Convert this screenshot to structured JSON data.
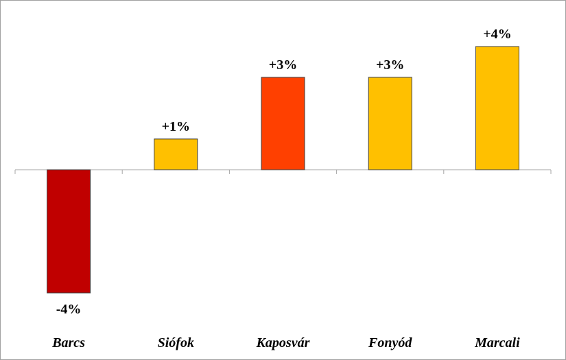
{
  "chart_data": {
    "type": "bar",
    "title": "",
    "xlabel": "",
    "ylabel": "",
    "categories": [
      "Barcs",
      "Siófok",
      "Kaposvár",
      "Fonyód",
      "Marcali"
    ],
    "values": [
      -4,
      1,
      3,
      3,
      4
    ],
    "value_labels": [
      "-4%",
      "+1%",
      "+3%",
      "+3%",
      "+4%"
    ],
    "colors": [
      "#c00000",
      "#ffc000",
      "#ff4000",
      "#ffc000",
      "#ffc000"
    ],
    "ylim": [
      -4.5,
      4.5
    ],
    "grid": false,
    "legend": "none"
  }
}
